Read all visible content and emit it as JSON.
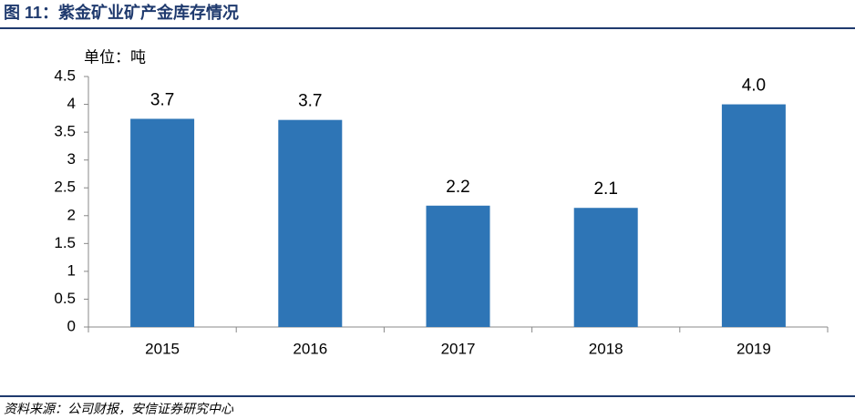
{
  "chart_data": {
    "type": "bar",
    "title": "图 11：紫金矿业矿产金库存情况",
    "unit_label": "单位：吨",
    "source": "资料来源：公司财报，安信证券研究中心",
    "categories": [
      "2015",
      "2016",
      "2017",
      "2018",
      "2019"
    ],
    "values": [
      3.74,
      3.72,
      2.18,
      2.14,
      4.0
    ],
    "value_labels": [
      "3.7",
      "3.7",
      "2.2",
      "2.1",
      "4.0"
    ],
    "color": "#2e75b6",
    "ylim": [
      0,
      4.5
    ],
    "yticks": [
      0,
      0.5,
      1,
      1.5,
      2,
      2.5,
      3,
      3.5,
      4,
      4.5
    ],
    "grid": false
  }
}
